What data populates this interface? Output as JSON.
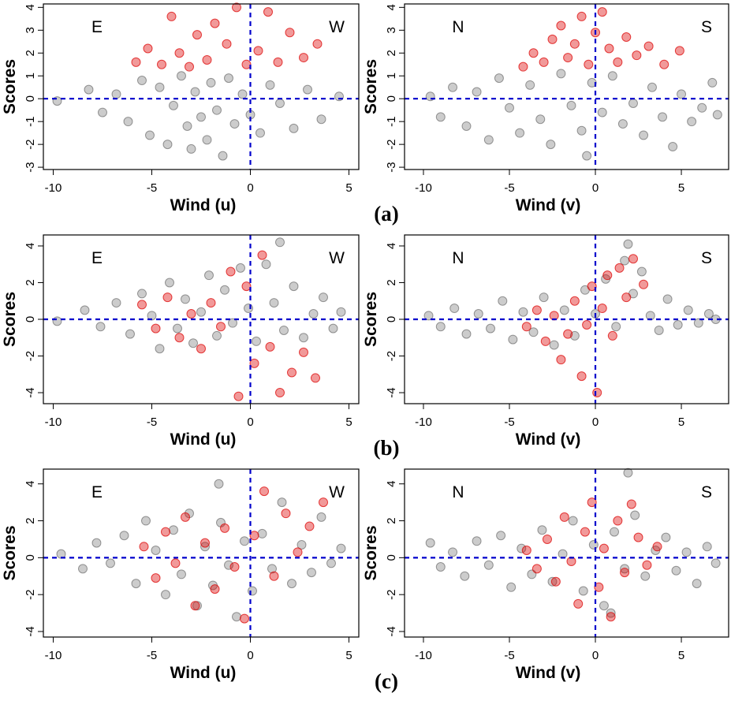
{
  "chart_data": [
    {
      "type": "scatter",
      "xlabel": "Wind (u)",
      "ylabel": "Scores",
      "annotations": [
        "E",
        "W"
      ],
      "xlim": [
        -10.5,
        5.5
      ],
      "ylim": [
        -3.1,
        4.15
      ],
      "xticks": [
        -10,
        -5,
        0,
        5
      ],
      "yticks": [
        -3,
        -2,
        -1,
        0,
        1,
        2,
        3,
        4
      ],
      "reference_lines": {
        "x": 0,
        "y": 0,
        "color": "#0000cc"
      },
      "series": [
        {
          "color": "#000000",
          "opacity": 0.2,
          "x": [
            -9.8,
            -8.2,
            -7.5,
            -6.8,
            -6.2,
            -5.5,
            -5.1,
            -4.6,
            -4.2,
            -3.9,
            -3.5,
            -3.2,
            -3.0,
            -2.8,
            -2.5,
            -2.2,
            -2.0,
            -1.7,
            -1.4,
            -1.1,
            -0.8,
            -0.4,
            0.0,
            0.5,
            1.0,
            1.5,
            2.2,
            2.9,
            3.6,
            4.5
          ],
          "values": [
            -0.1,
            0.4,
            -0.6,
            0.2,
            -1.0,
            0.8,
            -1.6,
            0.5,
            -2.0,
            -0.3,
            1.0,
            -1.2,
            -2.2,
            0.3,
            -0.8,
            -1.8,
            0.7,
            -0.5,
            -2.5,
            0.9,
            -1.1,
            0.2,
            -0.7,
            -1.5,
            0.6,
            -0.2,
            -1.3,
            0.4,
            -0.9,
            0.1
          ]
        },
        {
          "color": "#dd0000",
          "opacity": 0.4,
          "x": [
            -5.8,
            -5.2,
            -4.5,
            -4.0,
            -3.6,
            -3.1,
            -2.7,
            -2.2,
            -1.8,
            -1.2,
            -0.7,
            -0.2,
            0.4,
            0.9,
            1.4,
            2.0,
            2.7,
            3.4
          ],
          "values": [
            1.6,
            2.2,
            1.5,
            3.6,
            2.0,
            1.4,
            2.8,
            1.7,
            3.3,
            2.4,
            4.0,
            1.5,
            2.1,
            3.8,
            1.6,
            2.9,
            1.8,
            2.4
          ]
        }
      ]
    },
    {
      "type": "scatter",
      "xlabel": "Wind (v)",
      "ylabel": "Scores",
      "annotations": [
        "N",
        "S"
      ],
      "caption": "(a)",
      "xlim": [
        -11.1,
        7.75
      ],
      "ylim": [
        -3.1,
        4.15
      ],
      "xticks": [
        -10,
        -5,
        0,
        5
      ],
      "yticks": [
        -3,
        -2,
        -1,
        0,
        1,
        2,
        3,
        4
      ],
      "reference_lines": {
        "x": 0,
        "y": 0,
        "color": "#0000cc"
      },
      "series": [
        {
          "color": "#000000",
          "opacity": 0.2,
          "x": [
            -9.6,
            -9.0,
            -8.3,
            -7.5,
            -6.9,
            -6.2,
            -5.6,
            -5.0,
            -4.4,
            -3.8,
            -3.2,
            -2.6,
            -2.0,
            -1.4,
            -0.8,
            -0.2,
            0.4,
            1.0,
            1.6,
            2.2,
            2.8,
            3.3,
            3.9,
            4.5,
            5.0,
            5.6,
            6.2,
            6.8,
            7.1,
            -0.5
          ],
          "values": [
            0.1,
            -0.8,
            0.5,
            -1.2,
            0.3,
            -1.8,
            0.9,
            -0.4,
            -1.5,
            0.6,
            -0.9,
            -2.0,
            1.1,
            -0.3,
            -1.4,
            0.7,
            -0.6,
            1.0,
            -1.1,
            -0.2,
            -1.6,
            0.5,
            -0.8,
            -2.1,
            0.2,
            -1.0,
            -0.4,
            0.7,
            -0.7,
            -2.5
          ]
        },
        {
          "color": "#dd0000",
          "opacity": 0.4,
          "x": [
            -4.2,
            -3.6,
            -3.0,
            -2.5,
            -2.0,
            -1.6,
            -1.2,
            -0.8,
            -0.4,
            0.0,
            0.4,
            0.8,
            1.3,
            1.8,
            2.4,
            3.1,
            4.0,
            4.9
          ],
          "values": [
            1.4,
            2.0,
            1.6,
            2.6,
            3.2,
            1.8,
            2.4,
            3.6,
            1.5,
            2.9,
            3.8,
            2.2,
            1.6,
            2.7,
            1.9,
            2.3,
            1.5,
            2.1
          ]
        }
      ]
    },
    {
      "type": "scatter",
      "xlabel": "Wind (u)",
      "ylabel": "Scores",
      "annotations": [
        "E",
        "W"
      ],
      "xlim": [
        -10.5,
        5.5
      ],
      "ylim": [
        -4.6,
        4.6
      ],
      "xticks": [
        -10,
        -5,
        0,
        5
      ],
      "yticks": [
        -4,
        -2,
        0,
        2,
        4
      ],
      "reference_lines": {
        "x": 0,
        "y": 0,
        "color": "#0000cc"
      },
      "series": [
        {
          "color": "#000000",
          "opacity": 0.2,
          "x": [
            -9.8,
            -8.4,
            -7.6,
            -6.8,
            -6.1,
            -5.5,
            -5.0,
            -4.6,
            -4.1,
            -3.7,
            -3.3,
            -2.9,
            -2.5,
            -2.1,
            -1.7,
            -1.3,
            -0.9,
            -0.5,
            -0.1,
            0.3,
            0.8,
            1.2,
            1.7,
            2.2,
            2.7,
            3.2,
            3.7,
            4.2,
            4.6,
            1.5
          ],
          "values": [
            -0.1,
            0.5,
            -0.4,
            0.9,
            -0.8,
            1.4,
            0.2,
            -1.6,
            2.0,
            -0.5,
            1.1,
            -1.3,
            0.4,
            2.4,
            -0.9,
            1.6,
            -0.2,
            2.8,
            0.6,
            -1.2,
            3.0,
            0.9,
            -0.6,
            1.8,
            -1.0,
            0.3,
            1.2,
            -0.5,
            0.4,
            4.2
          ]
        },
        {
          "color": "#dd0000",
          "opacity": 0.4,
          "x": [
            -5.5,
            -4.8,
            -4.2,
            -3.6,
            -3.0,
            -2.5,
            -2.0,
            -1.5,
            -1.0,
            -0.6,
            -0.2,
            0.2,
            0.6,
            1.0,
            1.5,
            2.1,
            2.7,
            3.3
          ],
          "values": [
            0.8,
            -0.5,
            1.2,
            -1.0,
            0.3,
            -1.6,
            0.9,
            -0.4,
            2.6,
            -4.2,
            1.8,
            -2.4,
            3.5,
            -1.5,
            -4.0,
            -2.9,
            -1.8,
            -3.2
          ]
        }
      ]
    },
    {
      "type": "scatter",
      "xlabel": "Wind (v)",
      "ylabel": "Scores",
      "annotations": [
        "N",
        "S"
      ],
      "caption": "(b)",
      "xlim": [
        -11.1,
        7.75
      ],
      "ylim": [
        -4.6,
        4.6
      ],
      "xticks": [
        -10,
        -5,
        0,
        5
      ],
      "yticks": [
        -4,
        -2,
        0,
        2,
        4
      ],
      "reference_lines": {
        "x": 0,
        "y": 0,
        "color": "#0000cc"
      },
      "series": [
        {
          "color": "#000000",
          "opacity": 0.2,
          "x": [
            -9.7,
            -9.0,
            -8.2,
            -7.5,
            -6.8,
            -6.1,
            -5.4,
            -4.8,
            -4.2,
            -3.6,
            -3.0,
            -2.4,
            -1.8,
            -1.2,
            -0.6,
            0.0,
            0.6,
            1.2,
            1.7,
            2.2,
            2.7,
            3.2,
            3.7,
            4.2,
            4.8,
            5.4,
            6.0,
            6.6,
            7.0,
            1.9
          ],
          "values": [
            0.2,
            -0.4,
            0.6,
            -0.8,
            0.3,
            -0.5,
            1.0,
            -1.1,
            0.4,
            -0.7,
            1.2,
            -1.4,
            0.5,
            -0.9,
            1.6,
            0.3,
            2.2,
            -0.4,
            3.2,
            1.4,
            2.6,
            0.2,
            -0.6,
            1.1,
            -0.3,
            0.5,
            -0.2,
            0.3,
            0.0,
            4.1
          ]
        },
        {
          "color": "#dd0000",
          "opacity": 0.4,
          "x": [
            -4.0,
            -3.4,
            -2.9,
            -2.4,
            -2.0,
            -1.6,
            -1.2,
            -0.8,
            -0.5,
            -0.2,
            0.1,
            0.4,
            0.7,
            1.0,
            1.4,
            1.8,
            2.2,
            2.8
          ],
          "values": [
            -0.4,
            0.5,
            -1.2,
            0.2,
            -2.2,
            -0.8,
            1.0,
            -3.1,
            -0.3,
            1.8,
            -4.0,
            0.6,
            2.4,
            -0.9,
            2.8,
            1.2,
            3.3,
            1.9
          ]
        }
      ]
    },
    {
      "type": "scatter",
      "xlabel": "Wind (u)",
      "ylabel": "Scores",
      "annotations": [
        "E",
        "W"
      ],
      "xlim": [
        -10.5,
        5.5
      ],
      "ylim": [
        -4.3,
        4.8
      ],
      "xticks": [
        -10,
        -5,
        0,
        5
      ],
      "yticks": [
        -4,
        -2,
        0,
        2,
        4
      ],
      "reference_lines": {
        "x": 0,
        "y": 0,
        "color": "#0000cc"
      },
      "series": [
        {
          "color": "#000000",
          "opacity": 0.2,
          "x": [
            -9.6,
            -8.5,
            -7.8,
            -7.1,
            -6.4,
            -5.8,
            -5.3,
            -4.8,
            -4.3,
            -3.9,
            -3.5,
            -3.1,
            -2.7,
            -2.3,
            -1.9,
            -1.5,
            -1.1,
            -0.7,
            -0.3,
            0.1,
            0.6,
            1.1,
            1.6,
            2.1,
            2.6,
            3.1,
            3.6,
            4.1,
            4.6,
            -1.6
          ],
          "values": [
            0.2,
            -0.6,
            0.8,
            -0.3,
            1.2,
            -1.4,
            2.0,
            0.4,
            -2.0,
            1.5,
            -0.9,
            2.4,
            -2.6,
            0.6,
            -1.5,
            1.9,
            -0.4,
            -3.2,
            0.9,
            -1.8,
            1.3,
            -0.6,
            3.0,
            -1.4,
            0.7,
            -0.8,
            2.2,
            -0.3,
            0.5,
            4.0
          ]
        },
        {
          "color": "#dd0000",
          "opacity": 0.4,
          "x": [
            -5.4,
            -4.8,
            -4.3,
            -3.8,
            -3.3,
            -2.8,
            -2.3,
            -1.8,
            -1.3,
            -0.8,
            -0.3,
            0.2,
            0.7,
            1.2,
            1.8,
            2.4,
            3.0,
            3.7
          ],
          "values": [
            0.6,
            -1.1,
            1.4,
            -0.3,
            2.2,
            -2.6,
            0.8,
            -1.7,
            1.6,
            -0.5,
            -3.3,
            1.2,
            3.6,
            -1.0,
            2.4,
            0.3,
            1.7,
            3.0
          ]
        }
      ]
    },
    {
      "type": "scatter",
      "xlabel": "Wind (v)",
      "ylabel": "Scores",
      "annotations": [
        "N",
        "S"
      ],
      "caption": "(c)",
      "xlim": [
        -11.1,
        7.75
      ],
      "ylim": [
        -4.3,
        4.8
      ],
      "xticks": [
        -10,
        -5,
        0,
        5
      ],
      "yticks": [
        -4,
        -2,
        0,
        2,
        4
      ],
      "reference_lines": {
        "x": 0,
        "y": 0,
        "color": "#0000cc"
      },
      "series": [
        {
          "color": "#000000",
          "opacity": 0.2,
          "x": [
            -9.6,
            -9.0,
            -8.3,
            -7.6,
            -6.9,
            -6.2,
            -5.5,
            -4.9,
            -4.3,
            -3.7,
            -3.1,
            -2.5,
            -1.9,
            -1.3,
            -0.7,
            -0.1,
            0.5,
            1.1,
            1.7,
            2.3,
            2.9,
            3.5,
            4.1,
            4.7,
            5.3,
            5.9,
            6.5,
            7.0,
            1.9,
            0.9
          ],
          "values": [
            0.8,
            -0.5,
            0.3,
            -1.0,
            0.9,
            -0.4,
            1.2,
            -1.6,
            0.5,
            -0.9,
            1.5,
            -1.3,
            0.2,
            2.0,
            -1.8,
            0.7,
            -2.6,
            1.4,
            -0.6,
            2.3,
            -1.0,
            0.4,
            1.1,
            -0.7,
            0.3,
            -1.4,
            0.6,
            -0.3,
            4.6,
            -3.0
          ]
        },
        {
          "color": "#dd0000",
          "opacity": 0.4,
          "x": [
            -4.0,
            -3.4,
            -2.8,
            -2.3,
            -1.8,
            -1.4,
            -1.0,
            -0.6,
            -0.2,
            0.2,
            0.5,
            0.9,
            1.3,
            1.7,
            2.1,
            2.5,
            3.0,
            3.6
          ],
          "values": [
            0.4,
            -0.6,
            1.0,
            -1.3,
            2.2,
            -0.2,
            -2.5,
            1.4,
            3.0,
            -1.6,
            0.5,
            -3.2,
            2.0,
            -0.8,
            2.9,
            1.1,
            -0.4,
            0.6
          ]
        }
      ]
    }
  ]
}
